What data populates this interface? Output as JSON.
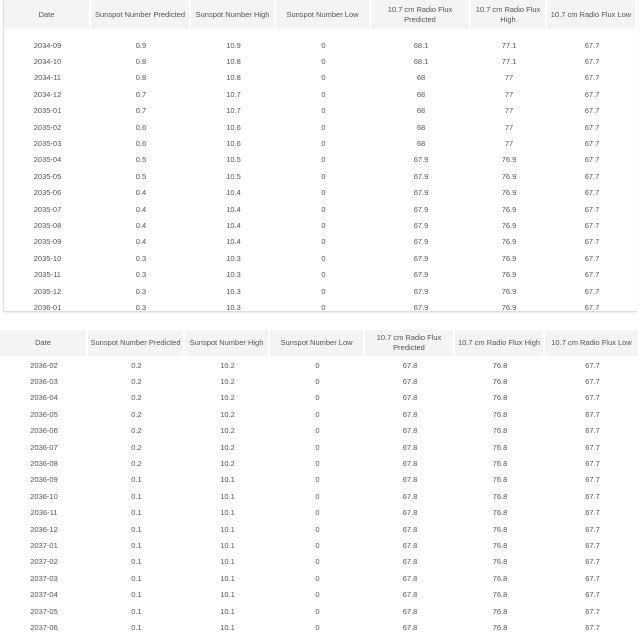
{
  "tables": [
    {
      "columns": [
        "Date",
        "Sunspot Number Predicted",
        "Sunspot Number High",
        "Sunspot Number Low",
        "10.7 cm Radio Flux Predicted",
        "10.7 cm Radio Flux High",
        "10.7 cm Radio Flux Low"
      ],
      "rows": [
        [
          "2034-09",
          "0.9",
          "10.9",
          "0",
          "68.1",
          "77.1",
          "67.7"
        ],
        [
          "2034-10",
          "0.8",
          "10.8",
          "0",
          "68.1",
          "77.1",
          "67.7"
        ],
        [
          "2034-11",
          "0.8",
          "10.8",
          "0",
          "68",
          "77",
          "67.7"
        ],
        [
          "2034-12",
          "0.7",
          "10.7",
          "0",
          "68",
          "77",
          "67.7"
        ],
        [
          "2035-01",
          "0.7",
          "10.7",
          "0",
          "68",
          "77",
          "67.7"
        ],
        [
          "2035-02",
          "0.6",
          "10.6",
          "0",
          "68",
          "77",
          "67.7"
        ],
        [
          "2035-03",
          "0.6",
          "10.6",
          "0",
          "68",
          "77",
          "67.7"
        ],
        [
          "2035-04",
          "0.5",
          "10.5",
          "0",
          "67.9",
          "76.9",
          "67.7"
        ],
        [
          "2035-05",
          "0.5",
          "10.5",
          "0",
          "67.9",
          "76.9",
          "67.7"
        ],
        [
          "2035-06",
          "0.4",
          "10.4",
          "0",
          "67.9",
          "76.9",
          "67.7"
        ],
        [
          "2035-07",
          "0.4",
          "10.4",
          "0",
          "67.9",
          "76.9",
          "67.7"
        ],
        [
          "2035-08",
          "0.4",
          "10.4",
          "0",
          "67.9",
          "76.9",
          "67.7"
        ],
        [
          "2035-09",
          "0.4",
          "10.4",
          "0",
          "67.9",
          "76.9",
          "67.7"
        ],
        [
          "2035-10",
          "0.3",
          "10.3",
          "0",
          "67.9",
          "76.9",
          "67.7"
        ],
        [
          "2035-11",
          "0.3",
          "10.3",
          "0",
          "67.9",
          "76.9",
          "67.7"
        ],
        [
          "2035-12",
          "0.3",
          "10.3",
          "0",
          "67.9",
          "76.9",
          "67.7"
        ],
        [
          "2036-01",
          "0.3",
          "10.3",
          "0",
          "67.9",
          "76.9",
          "67.7"
        ]
      ]
    },
    {
      "columns": [
        "Date",
        "Sunspot Number Predicted",
        "Sunspot Number High",
        "Sunspot Number Low",
        "10.7 cm Radio Flux Predicted",
        "10.7 cm Radio Flux High",
        "10.7 cm Radio Flux Low"
      ],
      "rows": [
        [
          "2036-02",
          "0.2",
          "10.2",
          "0",
          "67.8",
          "76.8",
          "67.7"
        ],
        [
          "2036-03",
          "0.2",
          "10.2",
          "0",
          "67.8",
          "76.8",
          "67.7"
        ],
        [
          "2036-04",
          "0.2",
          "10.2",
          "0",
          "67.8",
          "76.8",
          "67.7"
        ],
        [
          "2036-05",
          "0.2",
          "10.2",
          "0",
          "67.8",
          "76.8",
          "67.7"
        ],
        [
          "2036-06",
          "0.2",
          "10.2",
          "0",
          "67.8",
          "76.8",
          "67.7"
        ],
        [
          "2036-07",
          "0.2",
          "10.2",
          "0",
          "67.8",
          "76.8",
          "67.7"
        ],
        [
          "2036-08",
          "0.2",
          "10.2",
          "0",
          "67.8",
          "76.8",
          "67.7"
        ],
        [
          "2036-09",
          "0.1",
          "10.1",
          "0",
          "67.8",
          "76.8",
          "67.7"
        ],
        [
          "2036-10",
          "0.1",
          "10.1",
          "0",
          "67.8",
          "76.8",
          "67.7"
        ],
        [
          "2036-11",
          "0.1",
          "10.1",
          "0",
          "67.8",
          "76.8",
          "67.7"
        ],
        [
          "2036-12",
          "0.1",
          "10.1",
          "0",
          "67.8",
          "76.8",
          "67.7"
        ],
        [
          "2037-01",
          "0.1",
          "10.1",
          "0",
          "67.8",
          "76.8",
          "67.7"
        ],
        [
          "2037-02",
          "0.1",
          "10.1",
          "0",
          "67.8",
          "76.8",
          "67.7"
        ],
        [
          "2037-03",
          "0.1",
          "10.1",
          "0",
          "67.8",
          "76.8",
          "67.7"
        ],
        [
          "2037-04",
          "0.1",
          "10.1",
          "0",
          "67.8",
          "76.8",
          "67.7"
        ],
        [
          "2037-05",
          "0.1",
          "10.1",
          "0",
          "67.8",
          "76.8",
          "67.7"
        ],
        [
          "2037-06",
          "0.1",
          "10.1",
          "0",
          "67.8",
          "76.8",
          "67.7"
        ]
      ]
    }
  ]
}
